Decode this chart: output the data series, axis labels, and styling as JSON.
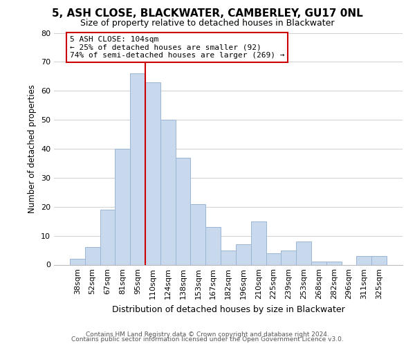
{
  "title": "5, ASH CLOSE, BLACKWATER, CAMBERLEY, GU17 0NL",
  "subtitle": "Size of property relative to detached houses in Blackwater",
  "xlabel": "Distribution of detached houses by size in Blackwater",
  "ylabel": "Number of detached properties",
  "footer_line1": "Contains HM Land Registry data © Crown copyright and database right 2024.",
  "footer_line2": "Contains public sector information licensed under the Open Government Licence v3.0.",
  "bin_labels": [
    "38sqm",
    "52sqm",
    "67sqm",
    "81sqm",
    "95sqm",
    "110sqm",
    "124sqm",
    "138sqm",
    "153sqm",
    "167sqm",
    "182sqm",
    "196sqm",
    "210sqm",
    "225sqm",
    "239sqm",
    "253sqm",
    "268sqm",
    "282sqm",
    "296sqm",
    "311sqm",
    "325sqm"
  ],
  "bar_values": [
    2,
    6,
    19,
    40,
    66,
    63,
    50,
    37,
    21,
    13,
    5,
    7,
    15,
    4,
    5,
    8,
    1,
    1,
    0,
    3,
    3
  ],
  "bar_color": "#c8d9ee",
  "bar_edge_color": "#9bb5d4",
  "vline_color": "#cc0000",
  "vline_index": 4.5,
  "annotation_text": "5 ASH CLOSE: 104sqm\n← 25% of detached houses are smaller (92)\n74% of semi-detached houses are larger (269) →",
  "annotation_box_color": "#ffffff",
  "annotation_box_edge": "#cc0000",
  "ylim": [
    0,
    80
  ],
  "yticks": [
    0,
    10,
    20,
    30,
    40,
    50,
    60,
    70,
    80
  ],
  "background_color": "#ffffff",
  "grid_color": "#d0d0d0",
  "title_fontsize": 11,
  "subtitle_fontsize": 9,
  "ylabel_fontsize": 8.5,
  "xlabel_fontsize": 9,
  "tick_fontsize": 8,
  "annot_fontsize": 8
}
